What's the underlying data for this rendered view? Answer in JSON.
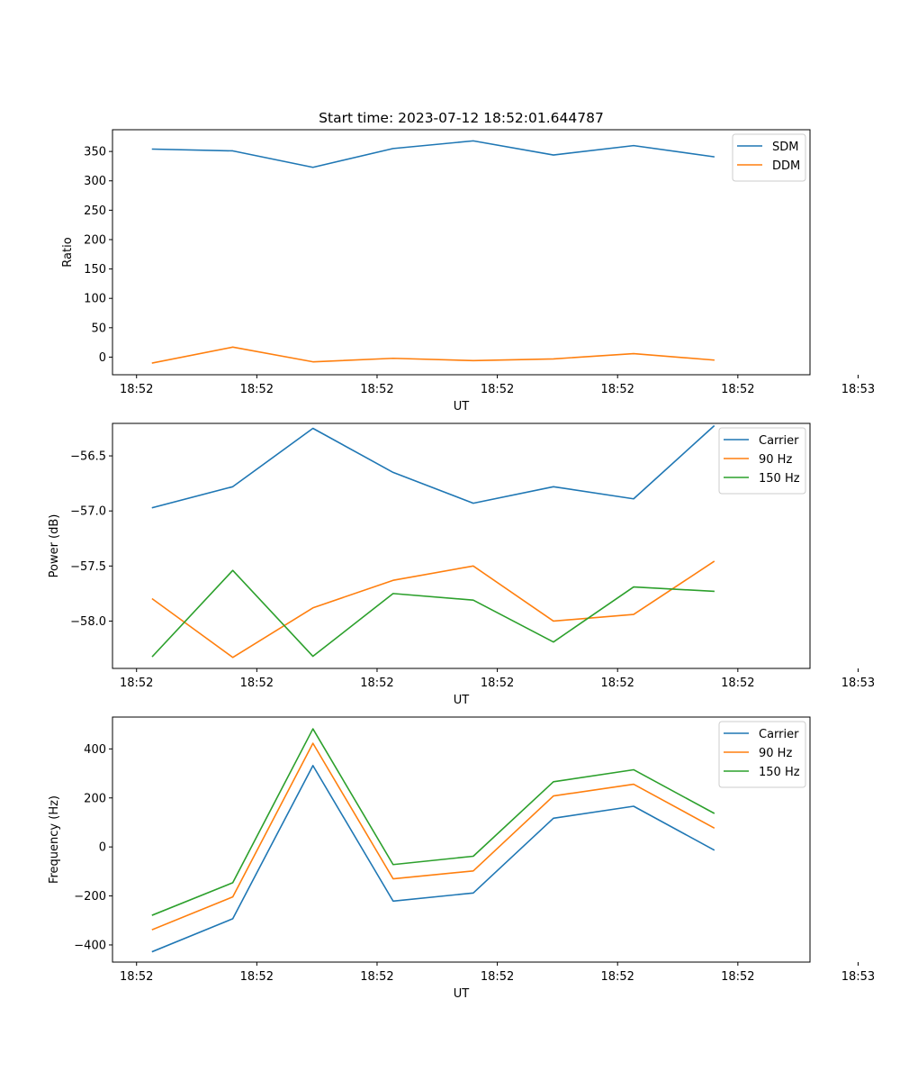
{
  "chart_data": [
    {
      "type": "line",
      "title": "Start time: 2023-07-12 18:52:01.644787",
      "xlabel": "UT",
      "ylabel": "Ratio",
      "x": [
        1,
        2,
        3,
        4,
        5,
        6,
        7,
        8
      ],
      "xlim": [
        0.5,
        9.2
      ],
      "xticks": [
        0.8,
        2.3,
        3.8,
        5.3,
        6.8,
        8.3,
        9.8
      ],
      "xtick_labels": [
        "18:52",
        "18:52",
        "18:52",
        "18:52",
        "18:52",
        "18:52",
        "18:53"
      ],
      "ylim": [
        -30,
        387
      ],
      "yticks": [
        0,
        50,
        100,
        150,
        200,
        250,
        300,
        350
      ],
      "ytick_labels": [
        "0",
        "50",
        "100",
        "150",
        "200",
        "250",
        "300",
        "350"
      ],
      "legend_position": "top-right",
      "series": [
        {
          "name": "SDM",
          "color": "#1f77b4",
          "values": [
            354,
            351,
            323,
            355,
            368,
            344,
            360,
            341
          ]
        },
        {
          "name": "DDM",
          "color": "#ff7f0e",
          "values": [
            -10,
            17,
            -8,
            -2,
            -6,
            -3,
            6,
            -5
          ]
        }
      ]
    },
    {
      "type": "line",
      "title": "",
      "xlabel": "UT",
      "ylabel": "Power (dB)",
      "x": [
        1,
        2,
        3,
        4,
        5,
        6,
        7,
        8
      ],
      "xlim": [
        0.5,
        9.2
      ],
      "xticks": [
        0.8,
        2.3,
        3.8,
        5.3,
        6.8,
        8.3,
        9.8
      ],
      "xtick_labels": [
        "18:52",
        "18:52",
        "18:52",
        "18:52",
        "18:52",
        "18:52",
        "18:53"
      ],
      "ylim": [
        -58.43,
        -56.205
      ],
      "yticks": [
        -58.0,
        -57.5,
        -57.0,
        -56.5
      ],
      "ytick_labels": [
        "−58.0",
        "−57.5",
        "−57.0",
        "−56.5"
      ],
      "legend_position": "top-right",
      "series": [
        {
          "name": "Carrier",
          "color": "#1f77b4",
          "values": [
            -56.97,
            -56.78,
            -56.25,
            -56.65,
            -56.93,
            -56.78,
            -56.89,
            -56.23
          ]
        },
        {
          "name": "90 Hz",
          "color": "#ff7f0e",
          "values": [
            -57.8,
            -58.33,
            -57.88,
            -57.63,
            -57.5,
            -58.0,
            -57.94,
            -57.46
          ]
        },
        {
          "name": "150 Hz",
          "color": "#2ca02c",
          "values": [
            -58.32,
            -57.54,
            -58.32,
            -57.75,
            -57.81,
            -58.19,
            -57.69,
            -57.73
          ]
        }
      ]
    },
    {
      "type": "line",
      "title": "",
      "xlabel": "UT",
      "ylabel": "Frequency (Hz)",
      "x": [
        1,
        2,
        3,
        4,
        5,
        6,
        7,
        8
      ],
      "xlim": [
        0.5,
        9.2
      ],
      "xticks": [
        0.8,
        2.3,
        3.8,
        5.3,
        6.8,
        8.3,
        9.8
      ],
      "xtick_labels": [
        "18:52",
        "18:52",
        "18:52",
        "18:52",
        "18:52",
        "18:52",
        "18:53"
      ],
      "ylim": [
        -470,
        530
      ],
      "yticks": [
        -400,
        -200,
        0,
        200,
        400
      ],
      "ytick_labels": [
        "−400",
        "−200",
        "0",
        "200",
        "400"
      ],
      "legend_position": "top-right",
      "series": [
        {
          "name": "Carrier",
          "color": "#1f77b4",
          "values": [
            -427,
            -293,
            332,
            -221,
            -188,
            117,
            166,
            -12
          ]
        },
        {
          "name": "90 Hz",
          "color": "#ff7f0e",
          "values": [
            -337,
            -204,
            423,
            -130,
            -98,
            208,
            256,
            78
          ]
        },
        {
          "name": "150 Hz",
          "color": "#2ca02c",
          "values": [
            -278,
            -146,
            482,
            -72,
            -38,
            266,
            315,
            138
          ]
        }
      ]
    }
  ]
}
